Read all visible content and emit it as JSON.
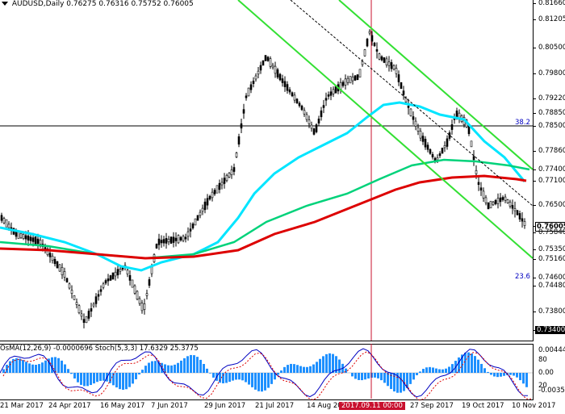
{
  "window": {
    "title_symbol": "AUDUSD,Daily",
    "ohlc": "0.76275 0.76316 0.75752 0.76005"
  },
  "price_axis": {
    "labels": [
      "0.81660",
      "0.81205",
      "0.80500",
      "0.79800",
      "0.79220",
      "0.78850",
      "0.78500",
      "0.77860",
      "0.77400",
      "0.77100",
      "0.76500",
      "0.76005",
      "0.75840",
      "0.75350",
      "0.75160",
      "0.74600",
      "0.74480",
      "0.73800",
      "0.73400"
    ],
    "current_price": "0.76005"
  },
  "fib_labels": {
    "fib_382": "38.2",
    "fib_236": "23.6"
  },
  "indicator": {
    "title": "OsMA(12,26,9) -0.0000696  Stoch(5,3,3) 17.6329 25.3775",
    "axis_labels": [
      "0.004445",
      "80",
      "0.00",
      "20",
      "-0.00350"
    ]
  },
  "time_axis": {
    "labels": [
      "21 Mar 2017",
      "24 Apr 2017",
      "16 May 2017",
      "7 Jun 2017",
      "29 Jun 2017",
      "21 Jul 2017",
      "14 Aug 2017",
      "27 Sep 2017",
      "19 Oct 2017",
      "10 Nov 2017"
    ],
    "highlighted": "2017.09.11 00:00"
  },
  "colors": {
    "candle": "#000000",
    "ma_fast": "#00e5ff",
    "ma_mid": "#00d27a",
    "ma_slow": "#dd0000",
    "channel": "#33e033",
    "vline": "#c8102e",
    "osma": "#1e90ff",
    "stoch_main": "#0000c0",
    "stoch_signal": "#dd0000"
  }
}
